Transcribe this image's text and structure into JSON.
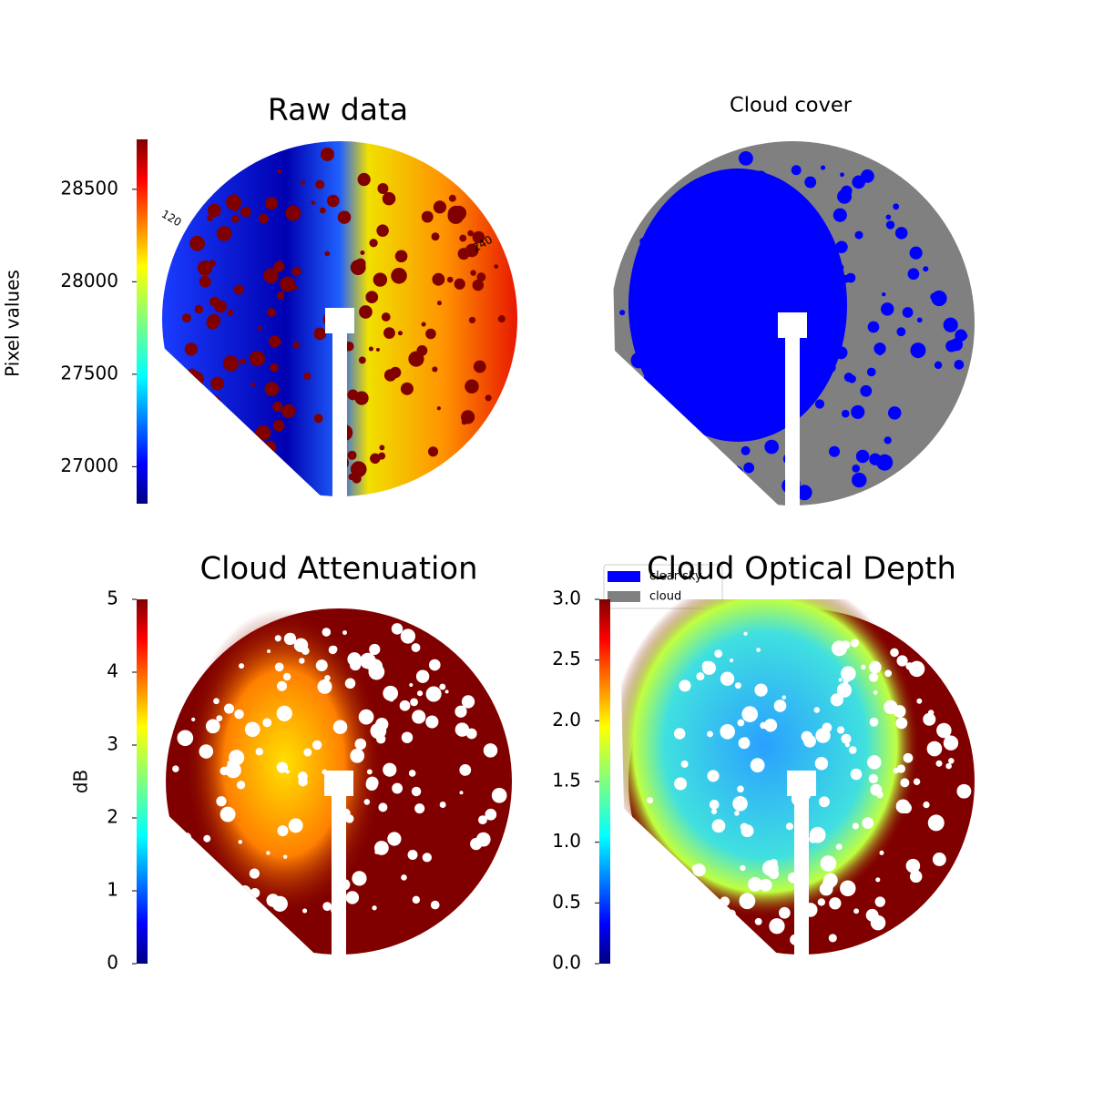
{
  "chart_data": [
    {
      "type": "heatmap",
      "title": "Raw data",
      "colorbar_label": "Pixel values",
      "colormap": "jet",
      "clim": [
        26800,
        28770
      ],
      "cticks": [
        27000,
        27500,
        28000,
        28500
      ],
      "annotations": [
        "120",
        "240"
      ]
    },
    {
      "type": "heatmap",
      "title": "Cloud cover",
      "legend": {
        "labels": [
          "clear sky",
          "cloud"
        ],
        "colors": [
          "#0000ff",
          "#808080"
        ]
      }
    },
    {
      "type": "heatmap",
      "title": "Cloud Attenuation",
      "colorbar_label": "dB",
      "colormap": "jet",
      "clim": [
        0,
        5
      ],
      "cticks": [
        0,
        1,
        2,
        3,
        4,
        5
      ]
    },
    {
      "type": "heatmap",
      "title": "Cloud Optical Depth",
      "colormap": "jet",
      "clim": [
        0,
        3
      ],
      "cticks": [
        {
          "value": 0,
          "label": "0.0"
        },
        0.5,
        {
          "value": 1,
          "label": "1.0"
        },
        1.5,
        {
          "value": 2,
          "label": "2.0"
        },
        2.5,
        {
          "value": 3,
          "label": "3.0"
        }
      ]
    }
  ]
}
